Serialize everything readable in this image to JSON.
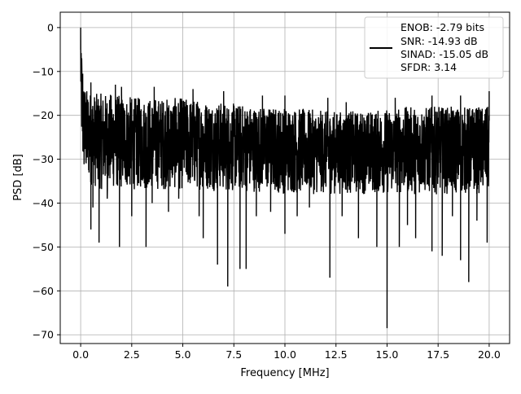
{
  "chart_data": {
    "type": "line",
    "title": "",
    "xlabel": "Frequency [MHz]",
    "ylabel": "PSD [dB]",
    "xlim": [
      -1.0,
      21.0
    ],
    "ylim": [
      -72.0,
      3.5
    ],
    "xticks": [
      0.0,
      2.5,
      5.0,
      7.5,
      10.0,
      12.5,
      15.0,
      17.5,
      20.0
    ],
    "xtick_labels": [
      "0.0",
      "2.5",
      "5.0",
      "7.5",
      "10.0",
      "12.5",
      "15.0",
      "17.5",
      "20.0"
    ],
    "yticks": [
      0,
      -10,
      -20,
      -30,
      -40,
      -50,
      -60,
      -70
    ],
    "ytick_labels": [
      "0",
      "−10",
      "−20",
      "−30",
      "−40",
      "−50",
      "−60",
      "−70"
    ],
    "grid": true,
    "legend_position": "top-right",
    "series_color": "#000000",
    "legend_lines": [
      "ENOB: -2.79 bits",
      "SNR: -14.93 dB",
      "SINAD: -15.05 dB",
      "SFDR: 3.14"
    ],
    "series": [
      {
        "x": [
          0.0,
          0.02,
          0.04,
          0.06,
          0.08,
          0.1,
          0.15,
          0.2,
          0.25,
          0.3,
          0.4,
          0.5,
          0.6,
          0.7,
          0.8,
          1.0,
          1.5,
          2.0,
          3.0,
          4.0,
          5.0,
          6.0,
          7.0,
          8.0,
          9.0,
          10.0,
          11.0,
          12.0,
          13.0,
          14.0,
          15.0,
          16.0,
          17.0,
          18.0,
          19.0,
          20.0
        ],
        "y_upper": [
          0.0,
          -5.0,
          -8.0,
          -7.0,
          -9.0,
          -11.0,
          -12.0,
          -13.0,
          -13.5,
          -14.0,
          -14.0,
          -14.5,
          -15.0,
          -15.0,
          -15.0,
          -15.0,
          -15.0,
          -15.5,
          -16.0,
          -16.0,
          -16.0,
          -16.5,
          -17.0,
          -17.5,
          -18.0,
          -18.0,
          -18.5,
          -19.0,
          -19.0,
          -19.0,
          -18.5,
          -18.0,
          -18.0,
          -18.0,
          -18.0,
          -18.0
        ],
        "y_lower": [
          -16.0,
          -20.0,
          -25.0,
          -28.0,
          -30.0,
          -33.0,
          -34.0,
          -34.5,
          -35.0,
          -35.0,
          -35.5,
          -36.0,
          -36.0,
          -36.5,
          -37.0,
          -37.0,
          -37.0,
          -37.0,
          -37.0,
          -37.0,
          -37.0,
          -37.0,
          -37.5,
          -37.5,
          -37.5,
          -38.0,
          -38.0,
          -38.0,
          -38.0,
          -38.0,
          -38.0,
          -38.0,
          -38.0,
          -38.0,
          -38.0,
          -38.0
        ]
      }
    ],
    "dips": [
      {
        "x": 0.5,
        "y": -46.0
      },
      {
        "x": 0.6,
        "y": -41.0
      },
      {
        "x": 0.9,
        "y": -49.0
      },
      {
        "x": 1.3,
        "y": -39.0
      },
      {
        "x": 1.9,
        "y": -50.0
      },
      {
        "x": 2.5,
        "y": -43.0
      },
      {
        "x": 3.2,
        "y": -50.0
      },
      {
        "x": 3.5,
        "y": -40.0
      },
      {
        "x": 4.3,
        "y": -42.0
      },
      {
        "x": 4.8,
        "y": -39.0
      },
      {
        "x": 5.8,
        "y": -43.0
      },
      {
        "x": 6.0,
        "y": -48.0
      },
      {
        "x": 6.7,
        "y": -54.0
      },
      {
        "x": 7.2,
        "y": -59.0
      },
      {
        "x": 7.8,
        "y": -55.0
      },
      {
        "x": 8.1,
        "y": -55.0
      },
      {
        "x": 8.6,
        "y": -43.0
      },
      {
        "x": 9.3,
        "y": -42.0
      },
      {
        "x": 10.0,
        "y": -47.0
      },
      {
        "x": 10.6,
        "y": -43.0
      },
      {
        "x": 11.2,
        "y": -41.0
      },
      {
        "x": 12.2,
        "y": -57.0
      },
      {
        "x": 12.8,
        "y": -43.0
      },
      {
        "x": 13.6,
        "y": -48.0
      },
      {
        "x": 14.5,
        "y": -50.0
      },
      {
        "x": 15.0,
        "y": -68.5
      },
      {
        "x": 15.6,
        "y": -50.0
      },
      {
        "x": 16.0,
        "y": -45.0
      },
      {
        "x": 16.4,
        "y": -48.0
      },
      {
        "x": 17.2,
        "y": -51.0
      },
      {
        "x": 17.7,
        "y": -52.0
      },
      {
        "x": 18.2,
        "y": -43.0
      },
      {
        "x": 18.6,
        "y": -53.0
      },
      {
        "x": 19.0,
        "y": -58.0
      },
      {
        "x": 19.4,
        "y": -44.0
      },
      {
        "x": 19.9,
        "y": -49.0
      }
    ],
    "peaks": [
      {
        "x": 0.0,
        "y": 0.0
      },
      {
        "x": 0.05,
        "y": -7.0
      },
      {
        "x": 0.1,
        "y": -10.5
      },
      {
        "x": 0.5,
        "y": -12.5
      },
      {
        "x": 1.7,
        "y": -13.0
      },
      {
        "x": 2.0,
        "y": -13.5
      },
      {
        "x": 3.6,
        "y": -13.5
      },
      {
        "x": 5.5,
        "y": -14.0
      },
      {
        "x": 7.0,
        "y": -14.5
      },
      {
        "x": 8.9,
        "y": -15.5
      },
      {
        "x": 10.0,
        "y": -15.5
      },
      {
        "x": 12.1,
        "y": -16.0
      },
      {
        "x": 13.0,
        "y": -17.0
      },
      {
        "x": 15.4,
        "y": -16.0
      },
      {
        "x": 17.2,
        "y": -15.5
      },
      {
        "x": 18.6,
        "y": -15.5
      },
      {
        "x": 20.0,
        "y": -14.5
      }
    ]
  }
}
